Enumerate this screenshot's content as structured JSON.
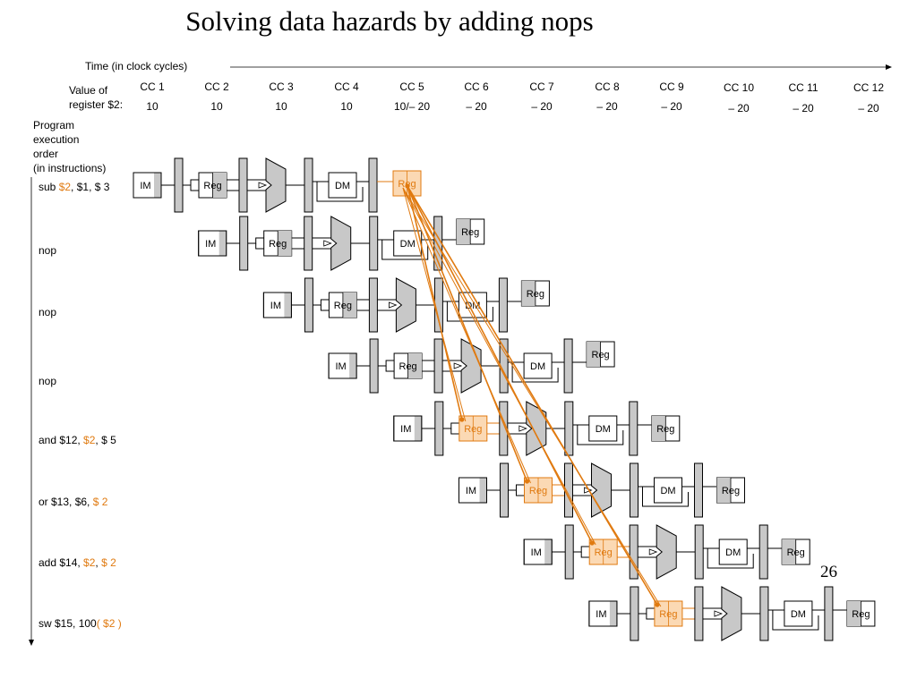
{
  "title": "Solving data hazards by adding nops",
  "slide_number": "26",
  "time_label": "Time (in clock cycles)",
  "value_label": [
    "Value of",
    "register $2:"
  ],
  "clock_cycles": [
    "CC 1",
    "CC 2",
    "CC 3",
    "CC 4",
    "CC 5",
    "CC 6",
    "CC 7",
    "CC 8",
    "CC 9",
    "CC 10",
    "CC 11",
    "CC 12"
  ],
  "register_values": [
    "10",
    "10",
    "10",
    "10",
    "10/– 20",
    "– 20",
    "– 20",
    "– 20",
    "– 20",
    "– 20",
    "– 20",
    "– 20"
  ],
  "order_label": [
    "Program",
    "execution",
    "order",
    "(in instructions)"
  ],
  "stage_labels": {
    "im": "IM",
    "reg": "Reg",
    "dm": "DM"
  },
  "instructions": [
    {
      "parts": [
        {
          "text": "sub "
        },
        {
          "text": "$2",
          "hl": true
        },
        {
          "text": ", $1, $ 3"
        }
      ]
    },
    {
      "parts": [
        {
          "text": "nop"
        }
      ]
    },
    {
      "parts": [
        {
          "text": "nop"
        }
      ]
    },
    {
      "parts": [
        {
          "text": "nop"
        }
      ]
    },
    {
      "parts": [
        {
          "text": "and $12, "
        },
        {
          "text": "$2",
          "hl": true
        },
        {
          "text": ",  $ 5"
        }
      ]
    },
    {
      "parts": [
        {
          "text": "or $13, $6, "
        },
        {
          "text": "$ 2",
          "hl": true
        }
      ]
    },
    {
      "parts": [
        {
          "text": "add $14, "
        },
        {
          "text": "$2",
          "hl": true
        },
        {
          "text": ",  "
        },
        {
          "text": "$ 2",
          "hl": true
        }
      ]
    },
    {
      "parts": [
        {
          "text": "sw $15, 100"
        },
        {
          "text": "( $2 )",
          "hl": true
        }
      ]
    }
  ],
  "colors": {
    "highlight": "#e07a10",
    "highlight_fill": "#fbd9b4",
    "stage_fill": "#c8c8c8"
  }
}
